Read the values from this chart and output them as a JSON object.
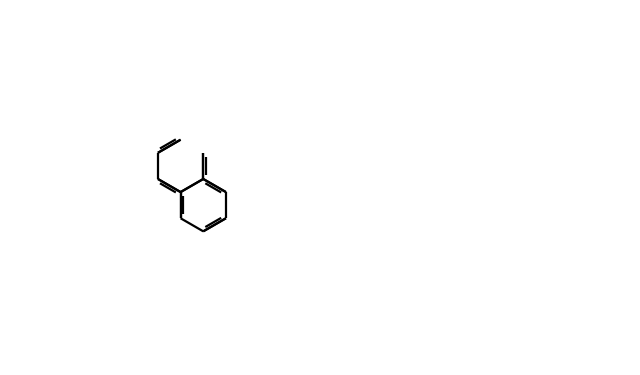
{
  "bg_color": "#ffffff",
  "fig_width": 6.4,
  "fig_height": 3.75,
  "dpi": 100,
  "lw": 1.6,
  "lw2": 3.0,
  "fc": "black",
  "fs": 11,
  "fs_small": 9.5
}
